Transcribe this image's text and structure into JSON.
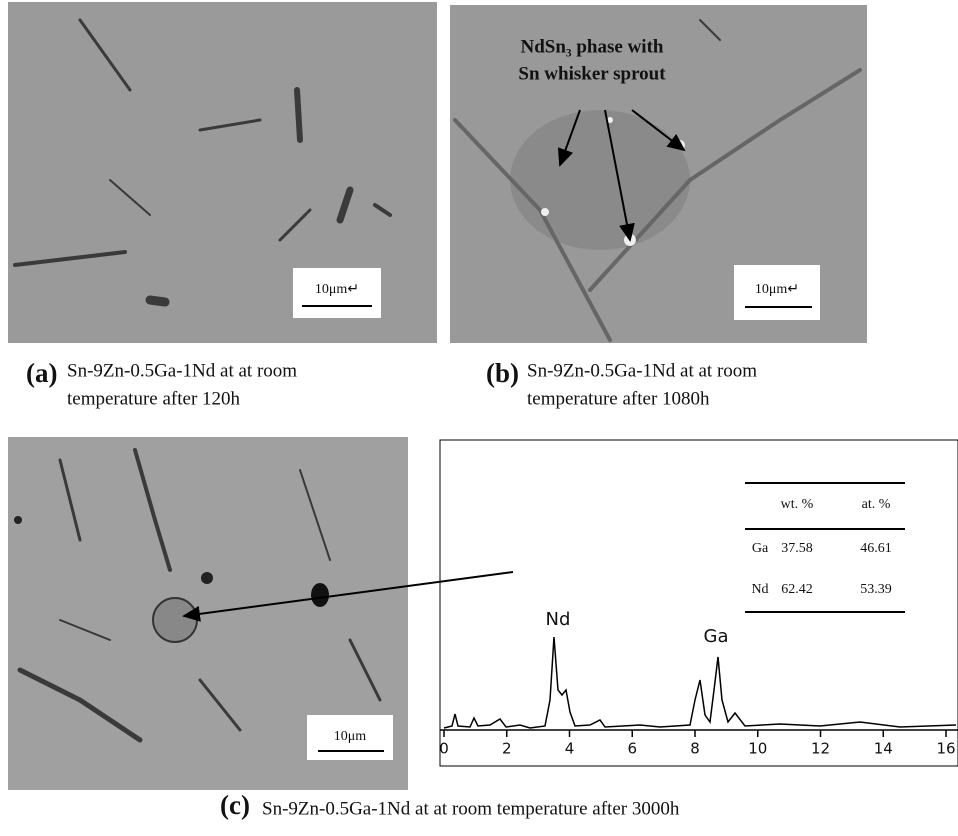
{
  "panels": [
    {
      "label": "(a)",
      "caption": [
        "Sn-9Zn-0.5Ga-1Nd at at room",
        "temperature after 120h"
      ],
      "scale_bar": "10μm↵"
    },
    {
      "label": "(b)",
      "caption": [
        "Sn-9Zn-0.5Ga-1Nd at at room",
        "temperature after 1080h"
      ],
      "scale_bar": "10μm↵",
      "annotation": [
        "NdSn₃ phase with",
        "Sn whisker sprout"
      ]
    },
    {
      "label": "(c)",
      "caption": [
        "Sn-9Zn-0.5Ga-1Nd at at room temperature after 3000h"
      ],
      "scale_bar": "10μm"
    }
  ],
  "spectrum": {
    "xlim": [
      0,
      16.35
    ],
    "xticks": [
      0,
      2,
      4,
      6,
      8,
      10,
      12,
      14,
      16
    ],
    "peak_labels": [
      "Nd",
      "Ga"
    ]
  },
  "table": {
    "header": [
      "wt. %",
      "at. %"
    ],
    "rows": [
      [
        "Ga",
        37.58,
        46.61
      ],
      [
        "Nd",
        62.42,
        53.39
      ]
    ]
  }
}
